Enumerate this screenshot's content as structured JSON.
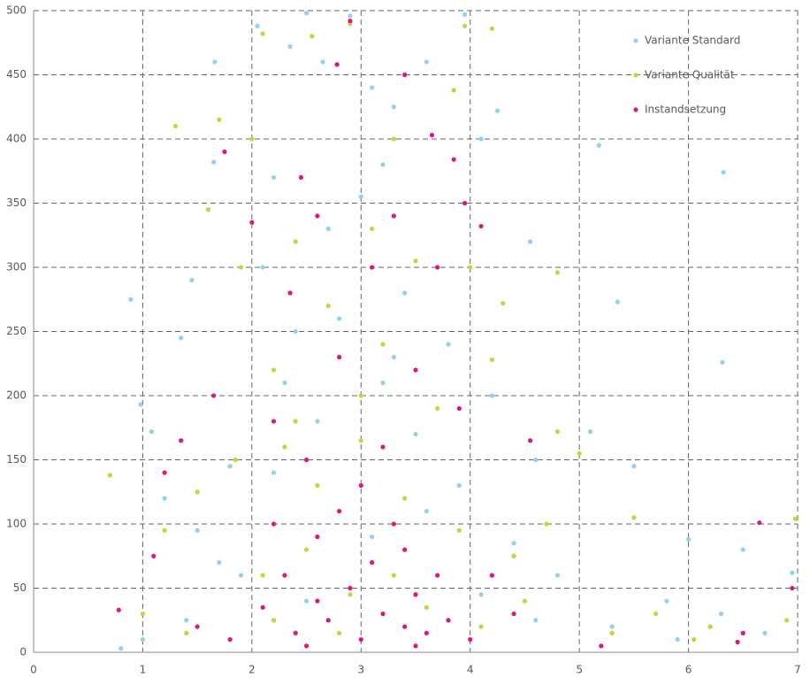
{
  "chart_data": {
    "type": "scatter",
    "xlim": [
      0,
      7
    ],
    "ylim": [
      0,
      500
    ],
    "xticks": [
      0,
      1,
      2,
      3,
      4,
      5,
      6,
      7
    ],
    "yticks": [
      0,
      50,
      100,
      150,
      200,
      250,
      300,
      350,
      400,
      450,
      500
    ],
    "grid": true,
    "legend": "top-right",
    "series": [
      {
        "name": "Variante Standard",
        "color": "#8fd3ef",
        "x": [
          0.89,
          0.98,
          1.08,
          1.35,
          1.45,
          1.65,
          1.66,
          1.8,
          2.05,
          2.2,
          2.35,
          2.5,
          2.65,
          2.9,
          3.1,
          3.2,
          3.3,
          3.6,
          3.95,
          4.1,
          4.25,
          5.18,
          6.32,
          5.35,
          6.31,
          4.55,
          2.1,
          2.4,
          2.7,
          3.0,
          3.4,
          3.8,
          4.2,
          4.6,
          5.1,
          5.5,
          6.0,
          6.5,
          6.95,
          5.8,
          1.2,
          1.5,
          1.9,
          2.2,
          2.6,
          3.2,
          3.5,
          3.9,
          4.4,
          4.8,
          5.3,
          5.9,
          6.3,
          1.0,
          1.4,
          2.5,
          3.1,
          3.6,
          4.1,
          4.6,
          2.8,
          3.3,
          2.3,
          1.7,
          0.8,
          6.7
        ],
        "y": [
          275,
          193,
          172,
          245,
          290,
          382,
          460,
          145,
          488,
          370,
          472,
          498,
          460,
          496,
          440,
          380,
          425,
          460,
          497,
          400,
          422,
          395,
          374,
          273,
          226,
          320,
          300,
          250,
          330,
          355,
          280,
          240,
          200,
          150,
          172,
          145,
          88,
          80,
          62,
          40,
          120,
          95,
          60,
          140,
          180,
          210,
          170,
          130,
          85,
          60,
          20,
          10,
          30,
          10,
          25,
          40,
          90,
          110,
          45,
          25,
          260,
          230,
          210,
          70,
          3,
          15
        ]
      },
      {
        "name": "Variante Qualität",
        "color": "#c5d53a",
        "x": [
          0.7,
          1.3,
          1.7,
          2.1,
          2.55,
          2.9,
          3.3,
          3.85,
          3.95,
          4.2,
          1.6,
          2.0,
          1.9,
          2.4,
          3.1,
          3.5,
          4.0,
          4.8,
          4.3,
          4.2,
          2.2,
          2.7,
          3.2,
          3.7,
          4.8,
          5.0,
          5.5,
          6.98,
          6.2,
          6.05,
          1.2,
          1.5,
          1.85,
          2.3,
          2.6,
          3.0,
          3.4,
          3.9,
          4.4,
          4.7,
          5.3,
          5.7,
          2.1,
          2.5,
          2.9,
          3.3,
          3.6,
          2.2,
          2.8,
          1.4,
          1.0,
          4.1,
          4.5,
          6.9,
          3.0,
          2.4
        ],
        "y": [
          138,
          410,
          415,
          482,
          480,
          490,
          400,
          438,
          488,
          486,
          345,
          400,
          300,
          320,
          330,
          305,
          300,
          296,
          272,
          228,
          220,
          270,
          240,
          190,
          172,
          155,
          105,
          104,
          20,
          10,
          95,
          125,
          150,
          160,
          130,
          165,
          120,
          95,
          75,
          100,
          15,
          30,
          60,
          80,
          45,
          60,
          35,
          25,
          15,
          15,
          30,
          20,
          40,
          25,
          200,
          180
        ]
      },
      {
        "name": "Instandsetzung",
        "color": "#e0177a",
        "x": [
          0.78,
          1.1,
          1.2,
          1.35,
          1.65,
          1.75,
          2.0,
          2.45,
          2.9,
          2.78,
          3.4,
          3.65,
          3.85,
          3.95,
          4.1,
          3.3,
          2.6,
          2.35,
          3.1,
          3.7,
          2.8,
          3.5,
          3.9,
          2.2,
          2.5,
          3.2,
          4.55,
          6.65,
          6.95,
          6.5,
          6.45,
          1.5,
          1.8,
          2.1,
          2.3,
          2.4,
          2.6,
          2.7,
          2.9,
          3.0,
          3.1,
          3.2,
          3.3,
          3.4,
          3.5,
          3.6,
          3.7,
          3.8,
          4.2,
          4.0,
          2.5,
          2.8,
          3.0,
          3.4,
          2.2,
          2.6,
          3.5,
          4.4,
          5.2
        ],
        "y": [
          33,
          75,
          140,
          165,
          200,
          390,
          335,
          370,
          492,
          458,
          450,
          403,
          384,
          350,
          332,
          340,
          340,
          280,
          300,
          300,
          230,
          220,
          190,
          180,
          150,
          160,
          165,
          101,
          50,
          15,
          8,
          20,
          10,
          35,
          60,
          15,
          90,
          25,
          50,
          10,
          70,
          30,
          100,
          20,
          45,
          15,
          60,
          25,
          60,
          10,
          5,
          110,
          130,
          80,
          100,
          40,
          5,
          30,
          5
        ]
      }
    ]
  }
}
